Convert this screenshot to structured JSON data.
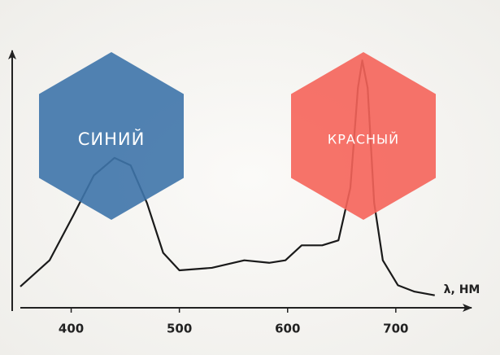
{
  "chart_data": {
    "type": "line",
    "xlabel": "λ, НМ",
    "x": [
      353,
      380,
      402,
      421,
      440,
      455,
      470,
      485,
      500,
      530,
      560,
      583,
      598,
      613,
      632,
      647,
      658,
      665,
      669,
      674,
      680,
      688,
      702,
      717,
      736
    ],
    "series": [
      {
        "color": "#1a1a1a",
        "values": [
          8.5,
          19,
          37,
          53,
          60,
          57,
          42,
          22,
          15,
          16,
          19,
          18,
          19,
          25,
          25,
          27,
          48,
          88,
          99,
          88,
          42,
          19,
          9,
          6.5,
          5
        ]
      }
    ],
    "xlim": [
      353,
      770
    ],
    "xticks": [
      400,
      500,
      600,
      700
    ],
    "ylim": [
      0,
      103
    ],
    "annotations": [
      {
        "text": "СИНИЙ",
        "color": "#3e74aa"
      },
      {
        "text": "КРАСНЫЙ",
        "color": "#f5645a"
      }
    ]
  }
}
